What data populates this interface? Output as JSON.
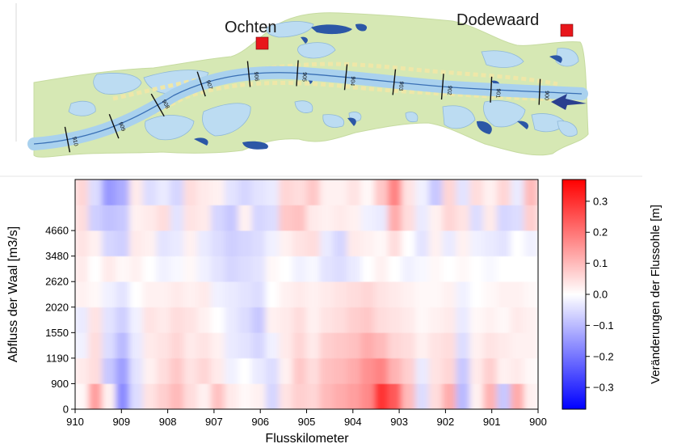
{
  "map": {
    "towns": [
      {
        "name": "Ochten",
        "color": "#e8161b"
      },
      {
        "name": "Dodewaard",
        "color": "#e8161b"
      }
    ],
    "km_markers": [
      "910",
      "909",
      "908",
      "907",
      "906",
      "905",
      "904",
      "903",
      "902",
      "901",
      "900"
    ],
    "colors": {
      "land": "#d6e8b4",
      "water": "#bcdcf2",
      "deep_water": "#2c57a6",
      "beach": "#efe7a8",
      "channel_line": "#3a70b5",
      "arrow": "#2a3f8f"
    }
  },
  "chart_data": {
    "type": "heatmap",
    "xlabel": "Flusskilometer",
    "ylabel": "Abfluss der Waal [m3/s]",
    "xlim": [
      910,
      900
    ],
    "x_ticks": [
      "910",
      "909",
      "908",
      "907",
      "906",
      "905",
      "904",
      "903",
      "902",
      "901",
      "900"
    ],
    "x_tick_values": [
      910,
      909,
      908,
      907,
      906,
      905,
      904,
      903,
      902,
      901,
      900
    ],
    "y_ticks": [
      "0",
      "900",
      "1190",
      "1550",
      "2020",
      "2620",
      "3480",
      "4660"
    ],
    "colorbar": {
      "label": "Veränderungen der Flussohle [m]",
      "ticks": [
        "0.3",
        "0.2",
        "0.1",
        "0.0",
        "−0.1",
        "−0.2",
        "−0.3"
      ],
      "tick_values": [
        0.3,
        0.2,
        0.1,
        0.0,
        -0.1,
        -0.2,
        -0.3
      ],
      "vmin": -0.37,
      "vmax": 0.37,
      "colormap": "bwr"
    },
    "x_km": [
      910,
      909.7,
      909.4,
      909.1,
      908.8,
      908.5,
      908.2,
      907.9,
      907.6,
      907.3,
      907,
      906.7,
      906.4,
      906.1,
      905.8,
      905.5,
      905.2,
      904.9,
      904.6,
      904.3,
      904,
      903.7,
      903.4,
      903.1,
      902.8,
      902.5,
      902.2,
      901.9,
      901.6,
      901.3,
      901,
      900.7,
      900.4,
      900.1
    ],
    "z": [
      [
        0.01,
        0.14,
        0.02,
        -0.17,
        -0.05,
        0.04,
        0.07,
        0.1,
        0.05,
        0.02,
        0.09,
        0.03,
        0.01,
        0.02,
        -0.06,
        0.04,
        0.07,
        0.06,
        0.1,
        0.12,
        0.14,
        0.17,
        0.3,
        0.24,
        0.1,
        -0.05,
        0.05,
        0.12,
        -0.1,
        0.02,
        0.11,
        -0.08,
        0.12,
        0.02
      ],
      [
        0.03,
        0.05,
        -0.08,
        -0.14,
        -0.04,
        0.02,
        0.05,
        0.08,
        0.04,
        0.06,
        0.03,
        -0.02,
        0.0,
        -0.03,
        -0.05,
        0.02,
        0.08,
        0.05,
        0.09,
        0.1,
        0.12,
        0.16,
        0.18,
        0.11,
        0.07,
        -0.03,
        0.04,
        0.06,
        -0.08,
        0.03,
        0.07,
        0.02,
        0.03,
        0.01
      ],
      [
        -0.02,
        0.05,
        -0.05,
        -0.1,
        -0.03,
        0.03,
        0.04,
        0.06,
        0.03,
        0.04,
        0.02,
        -0.03,
        -0.04,
        -0.06,
        -0.02,
        0.03,
        0.06,
        0.03,
        0.07,
        0.08,
        0.09,
        0.12,
        0.1,
        0.06,
        0.05,
        0.02,
        0.04,
        0.05,
        -0.05,
        0.02,
        0.04,
        0.03,
        0.02,
        0.02
      ],
      [
        -0.03,
        0.04,
        -0.04,
        -0.07,
        -0.02,
        0.04,
        0.03,
        0.05,
        0.04,
        0.02,
        0.0,
        -0.03,
        -0.05,
        -0.08,
        0.02,
        0.03,
        0.05,
        0.02,
        0.04,
        0.05,
        0.07,
        0.08,
        0.05,
        0.04,
        0.03,
        0.01,
        0.02,
        0.03,
        -0.03,
        0.01,
        0.02,
        0.01,
        0.03,
        0.02
      ],
      [
        0.02,
        0.01,
        -0.02,
        -0.04,
        0.0,
        0.02,
        0.02,
        0.03,
        0.02,
        0.03,
        -0.02,
        -0.03,
        -0.04,
        -0.05,
        0.0,
        0.02,
        0.03,
        0.02,
        0.03,
        0.04,
        0.05,
        0.06,
        0.04,
        0.03,
        0.02,
        0.01,
        0.01,
        0.02,
        -0.02,
        0.0,
        0.01,
        0.02,
        0.02,
        0.01
      ],
      [
        0.03,
        0.0,
        0.03,
        0.01,
        0.02,
        0.0,
        -0.02,
        -0.01,
        0.01,
        -0.02,
        -0.04,
        -0.06,
        -0.05,
        -0.04,
        0.01,
        0.0,
        -0.02,
        -0.01,
        -0.04,
        -0.05,
        -0.03,
        0.0,
        0.02,
        0.0,
        -0.02,
        -0.01,
        0.01,
        0.0,
        0.01,
        0.0,
        -0.01,
        0.0,
        0.0,
        0.0
      ],
      [
        0.04,
        0.02,
        -0.06,
        -0.07,
        0.03,
        0.02,
        -0.04,
        -0.03,
        0.02,
        -0.03,
        -0.05,
        -0.07,
        -0.06,
        -0.05,
        -0.02,
        0.02,
        0.04,
        0.05,
        -0.03,
        -0.06,
        0.03,
        0.02,
        0.01,
        0.05,
        0.0,
        -0.04,
        0.02,
        -0.03,
        0.02,
        -0.02,
        -0.03,
        -0.04,
        0.0,
        -0.02
      ],
      [
        0.05,
        -0.07,
        -0.09,
        -0.08,
        0.02,
        0.03,
        0.05,
        -0.04,
        0.04,
        0.03,
        -0.06,
        -0.08,
        0.02,
        -0.06,
        -0.05,
        0.08,
        0.09,
        0.03,
        0.02,
        0.03,
        0.02,
        -0.02,
        -0.03,
        0.12,
        0.05,
        -0.03,
        0.02,
        0.06,
        0.04,
        -0.05,
        0.03,
        -0.06,
        -0.05,
        0.07
      ],
      [
        0.06,
        -0.05,
        -0.15,
        -0.12,
        0.03,
        -0.05,
        -0.03,
        -0.06,
        0.05,
        0.03,
        0.02,
        -0.04,
        -0.06,
        -0.04,
        -0.03,
        0.06,
        0.05,
        0.08,
        0.02,
        0.02,
        0.04,
        0.01,
        0.08,
        0.18,
        0.04,
        -0.02,
        -0.08,
        0.06,
        -0.04,
        0.05,
        0.02,
        0.06,
        -0.03,
        0.1
      ]
    ]
  }
}
